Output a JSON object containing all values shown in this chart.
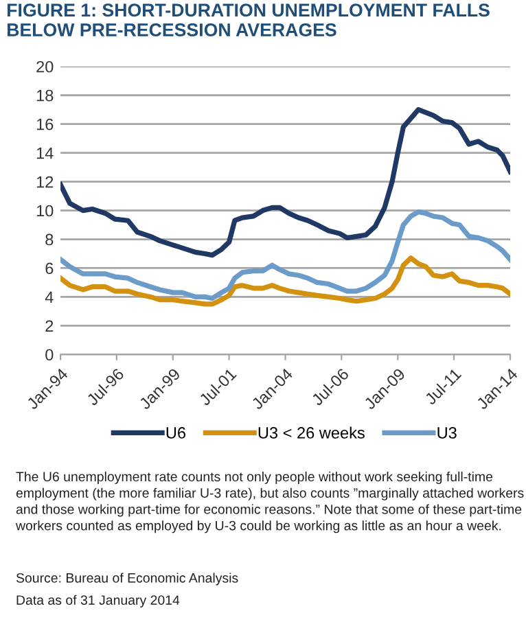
{
  "chart_data": {
    "type": "line",
    "title": "FIGURE 1: SHORT-DURATION UNEMPLOYMENT FALLS BELOW PRE-RECESSION AVERAGES",
    "x": [
      "1994-01",
      "1994-06",
      "1995-01",
      "1995-06",
      "1996-01",
      "1996-06",
      "1997-01",
      "1997-06",
      "1998-01",
      "1998-06",
      "1999-01",
      "1999-06",
      "2000-01",
      "2000-06",
      "2000-10",
      "2001-03",
      "2001-07",
      "2001-10",
      "2002-02",
      "2002-08",
      "2003-01",
      "2003-06",
      "2003-10",
      "2004-03",
      "2004-08",
      "2005-01",
      "2005-06",
      "2005-12",
      "2006-06",
      "2006-10",
      "2007-03",
      "2007-08",
      "2008-01",
      "2008-06",
      "2008-10",
      "2009-01",
      "2009-04",
      "2009-08",
      "2009-12",
      "2010-04",
      "2010-08",
      "2011-01",
      "2011-06",
      "2011-10",
      "2012-03",
      "2012-08",
      "2013-01",
      "2013-06",
      "2013-09",
      "2014-01"
    ],
    "series": [
      {
        "name": "U6",
        "color": "#1f3864",
        "values": [
          11.8,
          10.5,
          10.0,
          10.1,
          9.8,
          9.4,
          9.3,
          8.5,
          8.2,
          7.9,
          7.6,
          7.4,
          7.1,
          7.0,
          6.9,
          7.3,
          7.8,
          9.3,
          9.5,
          9.6,
          10.0,
          10.2,
          10.2,
          9.8,
          9.5,
          9.3,
          9.0,
          8.6,
          8.4,
          8.1,
          8.2,
          8.3,
          8.9,
          10.2,
          12.0,
          14.0,
          15.8,
          16.4,
          17.0,
          16.8,
          16.6,
          16.2,
          16.1,
          15.7,
          14.6,
          14.8,
          14.4,
          14.2,
          13.8,
          12.7
        ]
      },
      {
        "name": "U3 < 26 weeks",
        "color": "#d4900f",
        "values": [
          5.3,
          4.8,
          4.5,
          4.7,
          4.7,
          4.4,
          4.4,
          4.2,
          4.0,
          3.8,
          3.8,
          3.7,
          3.6,
          3.5,
          3.5,
          3.8,
          4.1,
          4.7,
          4.8,
          4.6,
          4.6,
          4.8,
          4.6,
          4.4,
          4.3,
          4.2,
          4.1,
          4.0,
          3.9,
          3.8,
          3.7,
          3.8,
          3.9,
          4.2,
          4.6,
          5.2,
          6.2,
          6.7,
          6.3,
          6.1,
          5.5,
          5.4,
          5.6,
          5.1,
          5.0,
          4.8,
          4.8,
          4.7,
          4.6,
          4.2
        ]
      },
      {
        "name": "U3",
        "color": "#6b9bc8",
        "values": [
          6.6,
          6.1,
          5.6,
          5.6,
          5.6,
          5.4,
          5.3,
          5.0,
          4.7,
          4.5,
          4.3,
          4.3,
          4.0,
          4.0,
          3.9,
          4.3,
          4.6,
          5.3,
          5.7,
          5.8,
          5.8,
          6.2,
          5.9,
          5.6,
          5.5,
          5.3,
          5.0,
          4.9,
          4.6,
          4.4,
          4.4,
          4.6,
          5.0,
          5.5,
          6.5,
          7.8,
          9.0,
          9.6,
          9.9,
          9.8,
          9.6,
          9.5,
          9.1,
          9.0,
          8.2,
          8.1,
          7.9,
          7.5,
          7.2,
          6.6
        ]
      }
    ],
    "xlim": [
      "1994-01",
      "2014-01"
    ],
    "xticks": [
      {
        "value": "1994-01",
        "label": "Jan-94"
      },
      {
        "value": "1996-07",
        "label": "Jul-96"
      },
      {
        "value": "1999-01",
        "label": "Jan-99"
      },
      {
        "value": "2001-07",
        "label": "Jul-01"
      },
      {
        "value": "2004-01",
        "label": "Jan-04"
      },
      {
        "value": "2006-07",
        "label": "Jul-06"
      },
      {
        "value": "2009-01",
        "label": "Jan-09"
      },
      {
        "value": "2011-07",
        "label": "Jul-11"
      },
      {
        "value": "2014-01",
        "label": "Jan-14"
      }
    ],
    "ylim": [
      0,
      20
    ],
    "yticks": [
      0,
      2,
      4,
      6,
      8,
      10,
      12,
      14,
      16,
      18,
      20
    ],
    "grid": "y",
    "legend": "bottom",
    "line_style": "solid",
    "marker": "none",
    "annotations": [
      "The U6 unemployment rate counts not only people without work seeking full-time employment (the more familiar U-3 rate), but also counts ”marginally attached workers and those working part-time for economic reasons.” Note that some of these part-time workers counted as employed by U-3 could be working as little as an hour a week.",
      "Source: Bureau of Economic Analysis",
      "Data as of 31 January 2014"
    ]
  }
}
